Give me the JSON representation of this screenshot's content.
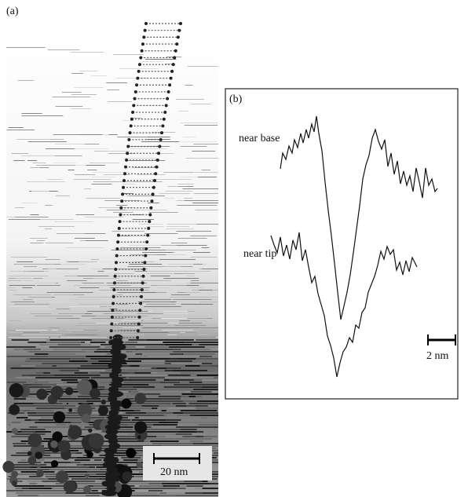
{
  "panel_a": {
    "label": "(a)",
    "scale_bar": "20 nm"
  },
  "panel_b": {
    "label": "(b)",
    "traces": [
      {
        "label": "near base"
      },
      {
        "label": "near tip"
      }
    ],
    "scale_bar": "2 nm"
  }
}
